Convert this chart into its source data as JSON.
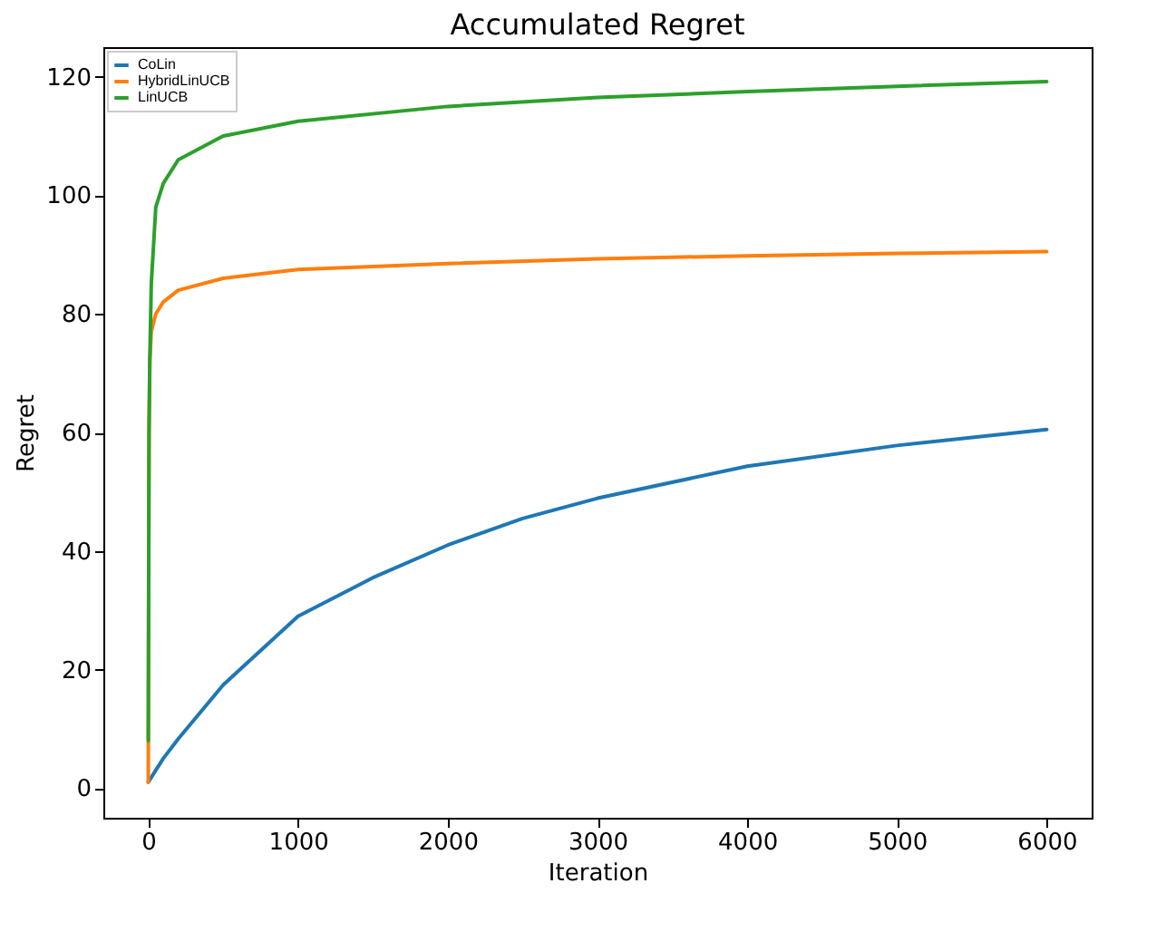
{
  "chart_data": {
    "type": "line",
    "title": "Accumulated Regret",
    "xlabel": "Iteration",
    "ylabel": "Regret",
    "xlim": [
      -300,
      6300
    ],
    "ylim": [
      -5,
      125
    ],
    "xticks": [
      0,
      1000,
      2000,
      3000,
      4000,
      5000,
      6000
    ],
    "yticks": [
      0,
      20,
      40,
      60,
      80,
      100,
      120
    ],
    "grid": false,
    "legend": "top left",
    "series": [
      {
        "name": "CoLin",
        "color": "#1f77b4",
        "x": [
          0,
          50,
          100,
          200,
          500,
          1000,
          1500,
          2000,
          2500,
          3000,
          4000,
          5000,
          6000
        ],
        "values": [
          1,
          3,
          5,
          8.3,
          17.4,
          29,
          35.5,
          41,
          45.5,
          48.9,
          54.3,
          57.8,
          60.5
        ]
      },
      {
        "name": "HybridLinUCB",
        "color": "#ff7f0e",
        "x": [
          0,
          5,
          10,
          20,
          50,
          100,
          200,
          500,
          1000,
          2000,
          3000,
          4000,
          5000,
          6000
        ],
        "values": [
          1,
          60,
          72,
          77,
          80,
          82,
          84,
          86,
          87.5,
          88.5,
          89.3,
          89.8,
          90.2,
          90.5
        ]
      },
      {
        "name": "LinUCB",
        "color": "#2ca02c",
        "x": [
          0,
          5,
          10,
          20,
          50,
          100,
          200,
          500,
          1000,
          2000,
          3000,
          4000,
          5000,
          6000
        ],
        "values": [
          8,
          60,
          72,
          85,
          98,
          102,
          106,
          110,
          112.5,
          115,
          116.5,
          117.5,
          118.4,
          119.2
        ]
      }
    ]
  }
}
